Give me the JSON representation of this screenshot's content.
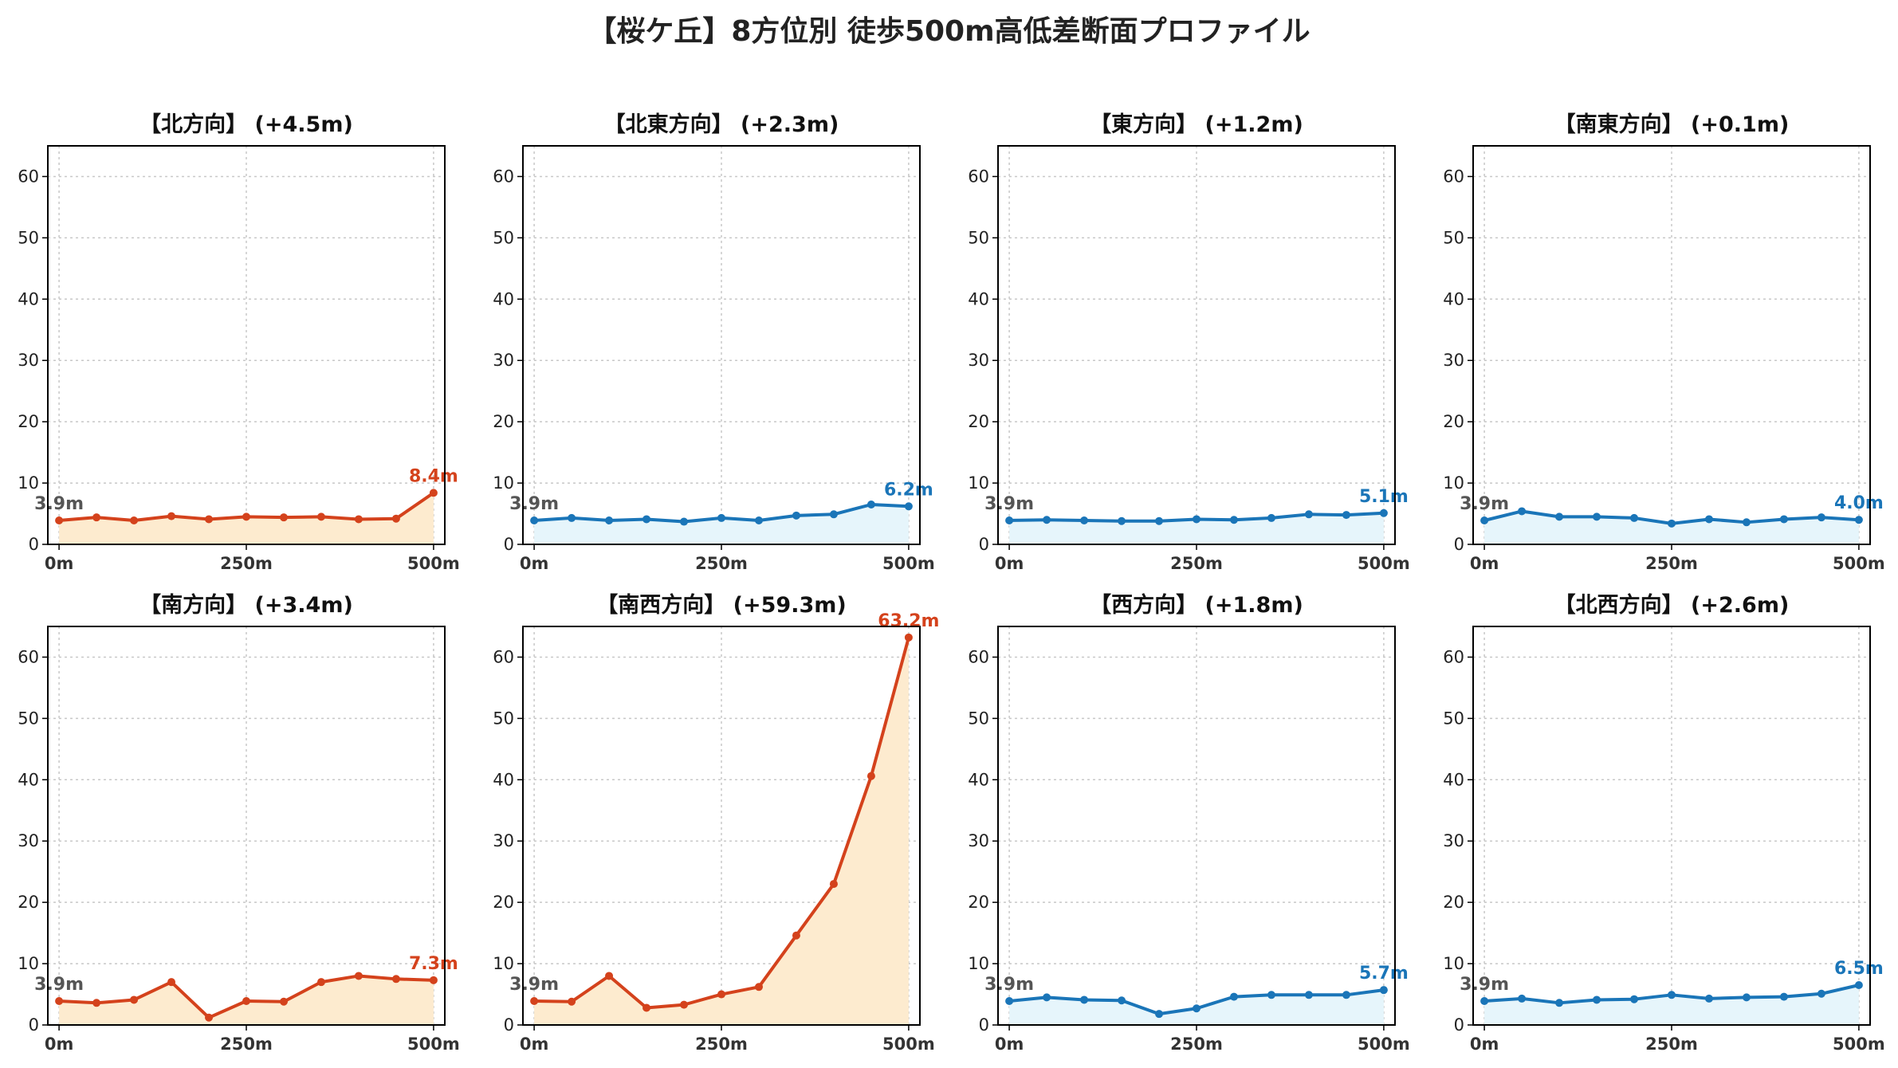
{
  "figure": {
    "title": "【桜ケ丘】8方位別 徒歩500m高低差断面プロファイル"
  },
  "colors": {
    "up_line": "#d4421c",
    "up_fill": "#fdebcf",
    "flat_line": "#1a75b8",
    "flat_fill": "#e6f5fb"
  },
  "chart_data": [
    {
      "type": "area",
      "title": "【北方向】 (+4.5m)",
      "style": "up",
      "x": [
        0,
        50,
        100,
        150,
        200,
        250,
        300,
        350,
        400,
        450,
        500
      ],
      "values": [
        3.9,
        4.4,
        3.9,
        4.6,
        4.1,
        4.5,
        4.4,
        4.5,
        4.1,
        4.2,
        8.4
      ],
      "start_label": "3.9m",
      "end_label": "8.4m",
      "xticks": [
        "0m",
        "250m",
        "500m"
      ],
      "yticks": [
        "0",
        "10",
        "20",
        "30",
        "40",
        "50",
        "60"
      ],
      "ylim": [
        0,
        65
      ],
      "xlim": [
        -15,
        515
      ],
      "grid": true
    },
    {
      "type": "area",
      "title": "【北東方向】 (+2.3m)",
      "style": "flat",
      "x": [
        0,
        50,
        100,
        150,
        200,
        250,
        300,
        350,
        400,
        450,
        500
      ],
      "values": [
        3.9,
        4.3,
        3.9,
        4.1,
        3.7,
        4.3,
        3.9,
        4.7,
        4.9,
        6.5,
        6.2
      ],
      "start_label": "3.9m",
      "end_label": "6.2m",
      "xticks": [
        "0m",
        "250m",
        "500m"
      ],
      "yticks": [
        "0",
        "10",
        "20",
        "30",
        "40",
        "50",
        "60"
      ],
      "ylim": [
        0,
        65
      ],
      "xlim": [
        -15,
        515
      ],
      "grid": true
    },
    {
      "type": "area",
      "title": "【東方向】 (+1.2m)",
      "style": "flat",
      "x": [
        0,
        50,
        100,
        150,
        200,
        250,
        300,
        350,
        400,
        450,
        500
      ],
      "values": [
        3.9,
        4.0,
        3.9,
        3.8,
        3.8,
        4.1,
        4.0,
        4.3,
        4.9,
        4.8,
        5.1
      ],
      "start_label": "3.9m",
      "end_label": "5.1m",
      "xticks": [
        "0m",
        "250m",
        "500m"
      ],
      "yticks": [
        "0",
        "10",
        "20",
        "30",
        "40",
        "50",
        "60"
      ],
      "ylim": [
        0,
        65
      ],
      "xlim": [
        -15,
        515
      ],
      "grid": true
    },
    {
      "type": "area",
      "title": "【南東方向】 (+0.1m)",
      "style": "flat",
      "x": [
        0,
        50,
        100,
        150,
        200,
        250,
        300,
        350,
        400,
        450,
        500
      ],
      "values": [
        3.9,
        5.4,
        4.5,
        4.5,
        4.3,
        3.4,
        4.1,
        3.6,
        4.1,
        4.4,
        4.0
      ],
      "start_label": "3.9m",
      "end_label": "4.0m",
      "xticks": [
        "0m",
        "250m",
        "500m"
      ],
      "yticks": [
        "0",
        "10",
        "20",
        "30",
        "40",
        "50",
        "60"
      ],
      "ylim": [
        0,
        65
      ],
      "xlim": [
        -15,
        515
      ],
      "grid": true
    },
    {
      "type": "area",
      "title": "【南方向】 (+3.4m)",
      "style": "up",
      "x": [
        0,
        50,
        100,
        150,
        200,
        250,
        300,
        350,
        400,
        450,
        500
      ],
      "values": [
        3.9,
        3.6,
        4.1,
        7.0,
        1.2,
        3.9,
        3.8,
        7.0,
        8.0,
        7.5,
        7.3
      ],
      "start_label": "3.9m",
      "end_label": "7.3m",
      "xticks": [
        "0m",
        "250m",
        "500m"
      ],
      "yticks": [
        "0",
        "10",
        "20",
        "30",
        "40",
        "50",
        "60"
      ],
      "ylim": [
        0,
        65
      ],
      "xlim": [
        -15,
        515
      ],
      "grid": true
    },
    {
      "type": "area",
      "title": "【南西方向】 (+59.3m)",
      "style": "up",
      "x": [
        0,
        50,
        100,
        150,
        200,
        250,
        300,
        350,
        400,
        450,
        500
      ],
      "values": [
        3.9,
        3.8,
        8.0,
        2.8,
        3.3,
        5.0,
        6.2,
        14.6,
        23.0,
        40.6,
        63.2
      ],
      "start_label": "3.9m",
      "end_label": "63.2m",
      "xticks": [
        "0m",
        "250m",
        "500m"
      ],
      "yticks": [
        "0",
        "10",
        "20",
        "30",
        "40",
        "50",
        "60"
      ],
      "ylim": [
        0,
        65
      ],
      "xlim": [
        -15,
        515
      ],
      "grid": true
    },
    {
      "type": "area",
      "title": "【西方向】 (+1.8m)",
      "style": "flat",
      "x": [
        0,
        50,
        100,
        150,
        200,
        250,
        300,
        350,
        400,
        450,
        500
      ],
      "values": [
        3.9,
        4.5,
        4.1,
        4.0,
        1.8,
        2.7,
        4.6,
        4.9,
        4.9,
        4.9,
        5.7
      ],
      "start_label": "3.9m",
      "end_label": "5.7m",
      "xticks": [
        "0m",
        "250m",
        "500m"
      ],
      "yticks": [
        "0",
        "10",
        "20",
        "30",
        "40",
        "50",
        "60"
      ],
      "ylim": [
        0,
        65
      ],
      "xlim": [
        -15,
        515
      ],
      "grid": true
    },
    {
      "type": "area",
      "title": "【北西方向】 (+2.6m)",
      "style": "flat",
      "x": [
        0,
        50,
        100,
        150,
        200,
        250,
        300,
        350,
        400,
        450,
        500
      ],
      "values": [
        3.9,
        4.3,
        3.6,
        4.1,
        4.2,
        4.9,
        4.3,
        4.5,
        4.6,
        5.1,
        6.5
      ],
      "start_label": "3.9m",
      "end_label": "6.5m",
      "xticks": [
        "0m",
        "250m",
        "500m"
      ],
      "yticks": [
        "0",
        "10",
        "20",
        "30",
        "40",
        "50",
        "60"
      ],
      "ylim": [
        0,
        65
      ],
      "xlim": [
        -15,
        515
      ],
      "grid": true
    }
  ]
}
